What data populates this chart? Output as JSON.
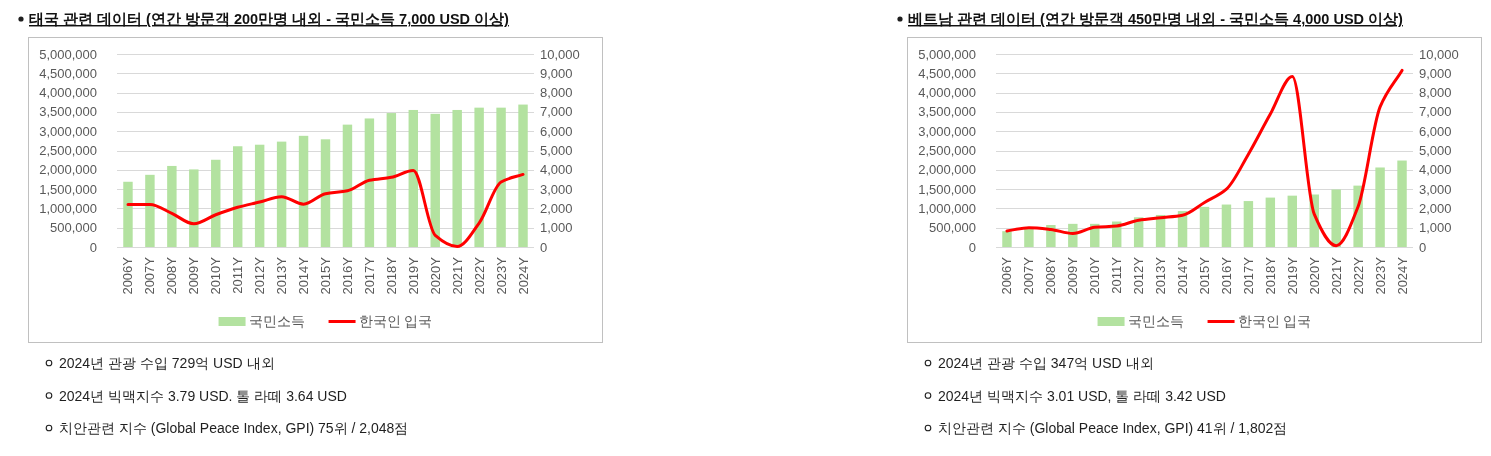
{
  "chart_data": [
    {
      "type": "bar",
      "title": "태국 관련 데이터 (연간 방문객 200만명 내외 - 국민소득 7,000 USD 이상)",
      "categories": [
        "2006Y",
        "2007Y",
        "2008Y",
        "2009Y",
        "2010Y",
        "2011Y",
        "2012Y",
        "2013Y",
        "2014Y",
        "2015Y",
        "2016Y",
        "2017Y",
        "2018Y",
        "2019Y",
        "2020Y",
        "2021Y",
        "2022Y",
        "2023Y",
        "2024Y"
      ],
      "series": [
        {
          "name": "국민소득",
          "color": "#b3e2a0",
          "values": [
            1690000,
            1870000,
            2100000,
            2010000,
            2260000,
            2610000,
            2650000,
            2730000,
            2880000,
            2790000,
            3170000,
            3330000,
            3470000,
            3550000,
            3450000,
            3550000,
            3610000,
            3610000,
            3690000
          ]
        },
        {
          "name": "한국인 입국",
          "type": "line",
          "axis": "y2",
          "color": "#ff0000",
          "values": [
            2200,
            2200,
            1740,
            1200,
            1670,
            2060,
            2330,
            2610,
            2220,
            2760,
            2910,
            3460,
            3610,
            3960,
            600,
            20,
            1240,
            3370,
            3760
          ]
        }
      ],
      "ylim": [
        0,
        5000000
      ],
      "yticks": [
        0,
        {
          "value": 500000,
          "label": "500,000"
        },
        {
          "value": 1000000,
          "label": "1,000,000"
        },
        {
          "value": 1500000,
          "label": "1,500,000"
        },
        {
          "value": 2000000,
          "label": "2,000,000"
        },
        {
          "value": 2500000,
          "label": "2,500,000"
        },
        {
          "value": 3000000,
          "label": "3,000,000"
        },
        {
          "value": 3500000,
          "label": "3,500,000"
        },
        {
          "value": 4000000,
          "label": "4,000,000"
        },
        {
          "value": 4500000,
          "label": "4,500,000"
        },
        {
          "value": 5000000,
          "label": "5,000,000"
        }
      ],
      "y2lim": [
        0,
        10000
      ],
      "y2ticks": [
        0,
        {
          "value": 1000,
          "label": "1,000"
        },
        {
          "value": 2000,
          "label": "2,000"
        },
        {
          "value": 3000,
          "label": "3,000"
        },
        {
          "value": 4000,
          "label": "4,000"
        },
        {
          "value": 5000,
          "label": "5,000"
        },
        {
          "value": 6000,
          "label": "6,000"
        },
        {
          "value": 7000,
          "label": "7,000"
        },
        {
          "value": 8000,
          "label": "8,000"
        },
        {
          "value": 9000,
          "label": "9,000"
        },
        {
          "value": 10000,
          "label": "10,000"
        }
      ],
      "grid": "y",
      "legend": "bottom",
      "annotations": [
        "2024년 관광 수입 729억 USD 내외",
        "2024년 빅맥지수 3.79 USD. 톨 라떼 3.64 USD",
        "치안관련 지수 (Global Peace Index, GPI) 75위 / 2,048점"
      ]
    },
    {
      "type": "bar",
      "title": "베트남 관련 데이터 (연간 방문객 450만명 내외 - 국민소득 4,000 USD 이상)",
      "categories": [
        "2006Y",
        "2007Y",
        "2008Y",
        "2009Y",
        "2010Y",
        "2011Y",
        "2012Y",
        "2013Y",
        "2014Y",
        "2015Y",
        "2016Y",
        "2017Y",
        "2018Y",
        "2019Y",
        "2020Y",
        "2021Y",
        "2022Y",
        "2023Y",
        "2024Y"
      ],
      "series": [
        {
          "name": "국민소득",
          "color": "#b3e2a0",
          "values": [
            410000,
            480000,
            570000,
            600000,
            600000,
            660000,
            770000,
            830000,
            930000,
            1040000,
            1100000,
            1190000,
            1280000,
            1330000,
            1360000,
            1490000,
            1590000,
            2060000,
            2240000
          ]
        },
        {
          "name": "한국인 입국",
          "type": "line",
          "axis": "y2",
          "color": "#ff0000",
          "values": [
            830,
            1000,
            910,
            700,
            1020,
            1090,
            1390,
            1520,
            1650,
            2310,
            3000,
            4810,
            6890,
            8830,
            1700,
            70,
            2100,
            7260,
            9150
          ]
        }
      ],
      "ylim": [
        0,
        5000000
      ],
      "yticks": [
        0,
        {
          "value": 500000,
          "label": "500,000"
        },
        {
          "value": 1000000,
          "label": "1,000,000"
        },
        {
          "value": 1500000,
          "label": "1,500,000"
        },
        {
          "value": 2000000,
          "label": "2,000,000"
        },
        {
          "value": 2500000,
          "label": "2,500,000"
        },
        {
          "value": 3000000,
          "label": "3,000,000"
        },
        {
          "value": 3500000,
          "label": "3,500,000"
        },
        {
          "value": 4000000,
          "label": "4,000,000"
        },
        {
          "value": 4500000,
          "label": "4,500,000"
        },
        {
          "value": 5000000,
          "label": "5,000,000"
        }
      ],
      "y2lim": [
        0,
        10000
      ],
      "y2ticks": [
        0,
        {
          "value": 1000,
          "label": "1,000"
        },
        {
          "value": 2000,
          "label": "2,000"
        },
        {
          "value": 3000,
          "label": "3,000"
        },
        {
          "value": 4000,
          "label": "4,000"
        },
        {
          "value": 5000,
          "label": "5,000"
        },
        {
          "value": 6000,
          "label": "6,000"
        },
        {
          "value": 7000,
          "label": "7,000"
        },
        {
          "value": 8000,
          "label": "8,000"
        },
        {
          "value": 9000,
          "label": "9,000"
        },
        {
          "value": 10000,
          "label": "10,000"
        }
      ],
      "grid": "y",
      "legend": "bottom",
      "annotations": [
        "2024년 관광 수입 347억 USD 내외",
        "2024년 빅맥지수 3.01 USD, 톨 라떼 3.42 USD",
        "치안관련 지수 (Global Peace Index, GPI) 41위 / 1,802점"
      ]
    }
  ]
}
